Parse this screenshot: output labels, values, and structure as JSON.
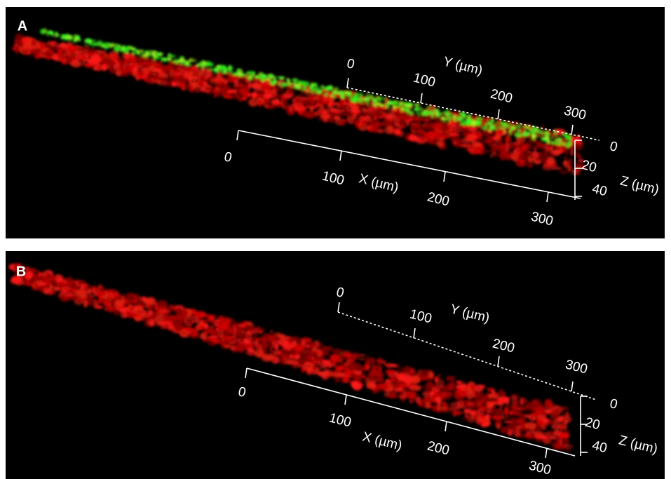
{
  "panels": [
    {
      "label": "A",
      "x_axis": {
        "title": "X (µm)",
        "ticks": [
          "0",
          "100",
          "200",
          "300"
        ]
      },
      "y_axis": {
        "title": "Y (µm)",
        "ticks": [
          "0",
          "100",
          "200",
          "300"
        ]
      },
      "z_axis": {
        "title": "Z (µm)",
        "ticks": [
          "0",
          "20",
          "40"
        ]
      }
    },
    {
      "label": "B",
      "x_axis": {
        "title": "X (µm)",
        "ticks": [
          "0",
          "100",
          "200",
          "300"
        ]
      },
      "y_axis": {
        "title": "Y (µm)",
        "ticks": [
          "0",
          "100",
          "200",
          "300"
        ]
      },
      "z_axis": {
        "title": "Z (µm)",
        "ticks": [
          "0",
          "20",
          "40"
        ]
      }
    }
  ]
}
